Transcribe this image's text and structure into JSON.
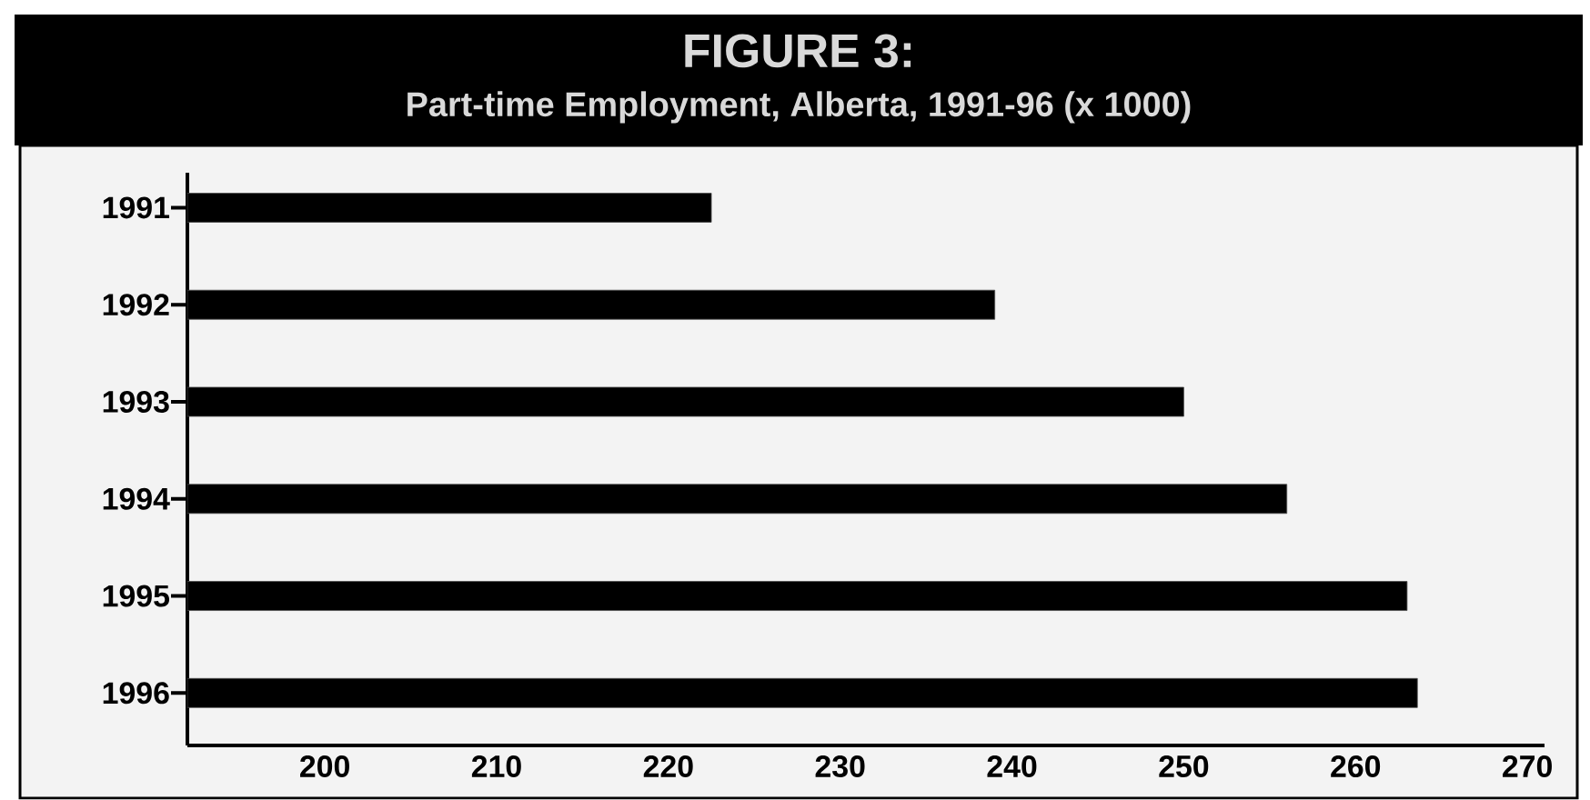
{
  "chart_data": {
    "type": "bar",
    "orientation": "horizontal",
    "title": "FIGURE 3:",
    "subtitle": "Part-time Employment, Alberta, 1991-96 (x 1000)",
    "categories": [
      "1991",
      "1992",
      "1993",
      "1994",
      "1995",
      "1996"
    ],
    "values": [
      222.5,
      239,
      250,
      256,
      263,
      263.6
    ],
    "color": "#000000",
    "xlim": [
      192,
      271
    ],
    "xticks": [
      200,
      210,
      220,
      230,
      240,
      250,
      260,
      270
    ]
  }
}
